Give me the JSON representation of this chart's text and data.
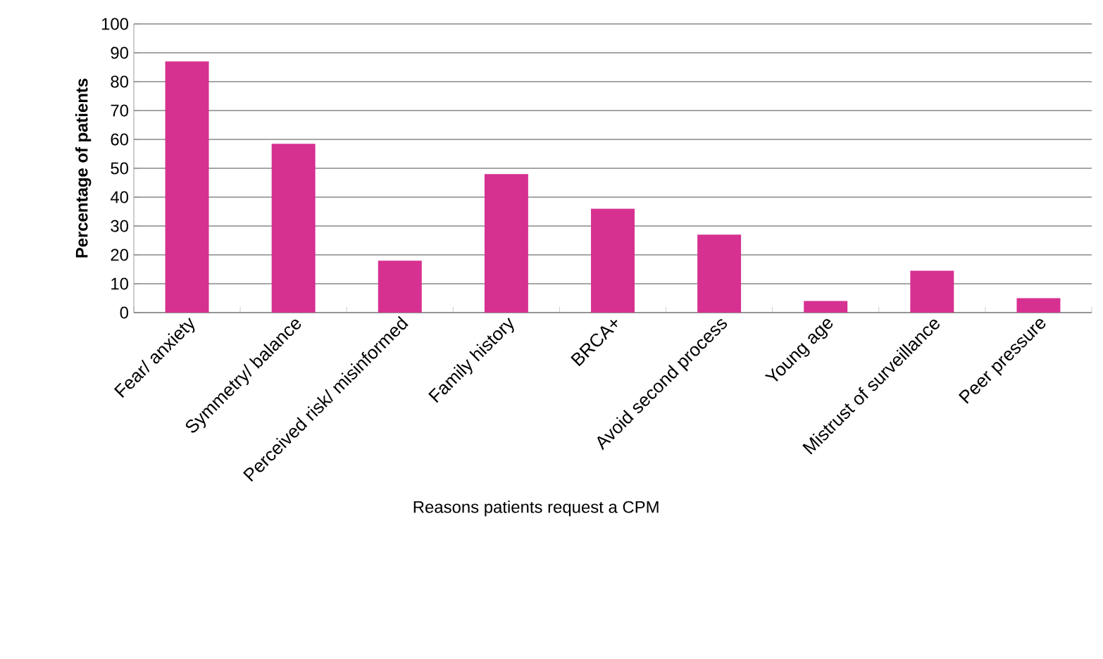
{
  "chart_data": {
    "type": "bar",
    "xlabel": "Reasons patients request a CPM",
    "ylabel": "Percentage of patients",
    "categories": [
      "Fear/ anxiety",
      "Symmetry/ balance",
      "Perceived  risk/ misinformed",
      "Family history",
      "BRCA+",
      "Avoid second process",
      "Young age",
      "Mistrust of surveillance",
      "Peer pressure"
    ],
    "values": [
      87,
      58.5,
      18,
      48,
      36,
      27,
      4,
      14.5,
      5
    ],
    "color": "#d63091",
    "ylim": [
      0,
      100
    ],
    "yticks": [
      0,
      10,
      20,
      30,
      40,
      50,
      60,
      70,
      80,
      90,
      100
    ],
    "grid": "y"
  }
}
